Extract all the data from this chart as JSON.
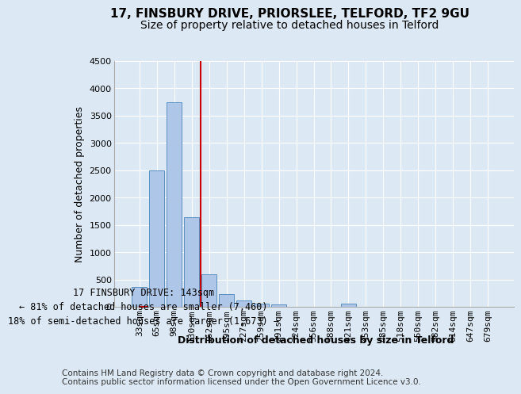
{
  "title1": "17, FINSBURY DRIVE, PRIORSLEE, TELFORD, TF2 9GU",
  "title2": "Size of property relative to detached houses in Telford",
  "xlabel": "Distribution of detached houses by size in Telford",
  "ylabel": "Number of detached properties",
  "categories": [
    "33sqm",
    "65sqm",
    "98sqm",
    "130sqm",
    "162sqm",
    "195sqm",
    "227sqm",
    "259sqm",
    "291sqm",
    "324sqm",
    "356sqm",
    "388sqm",
    "421sqm",
    "453sqm",
    "485sqm",
    "518sqm",
    "550sqm",
    "582sqm",
    "614sqm",
    "647sqm",
    "679sqm"
  ],
  "values": [
    370,
    2500,
    3750,
    1640,
    590,
    230,
    110,
    65,
    40,
    0,
    0,
    0,
    55,
    0,
    0,
    0,
    0,
    0,
    0,
    0,
    0
  ],
  "bar_color": "#aec6e8",
  "bar_edge_color": "#5a8fc0",
  "vline_color": "#cc0000",
  "vline_index": 3.5,
  "annotation_line1": "17 FINSBURY DRIVE: 143sqm",
  "annotation_line2": "← 81% of detached houses are smaller (7,460)",
  "annotation_line3": "18% of semi-detached houses are larger (1,673) →",
  "ylim": [
    0,
    4500
  ],
  "yticks": [
    0,
    500,
    1000,
    1500,
    2000,
    2500,
    3000,
    3500,
    4000,
    4500
  ],
  "footnote": "Contains HM Land Registry data © Crown copyright and database right 2024.\nContains public sector information licensed under the Open Government Licence v3.0.",
  "bg_color": "#dce9f5",
  "plot_bg_color": "#dce9f5",
  "grid_color": "#ffffff",
  "title1_fontsize": 11,
  "title2_fontsize": 10,
  "xlabel_fontsize": 9,
  "ylabel_fontsize": 9,
  "tick_fontsize": 8,
  "footnote_fontsize": 7.5,
  "ann_fontsize": 8.5
}
